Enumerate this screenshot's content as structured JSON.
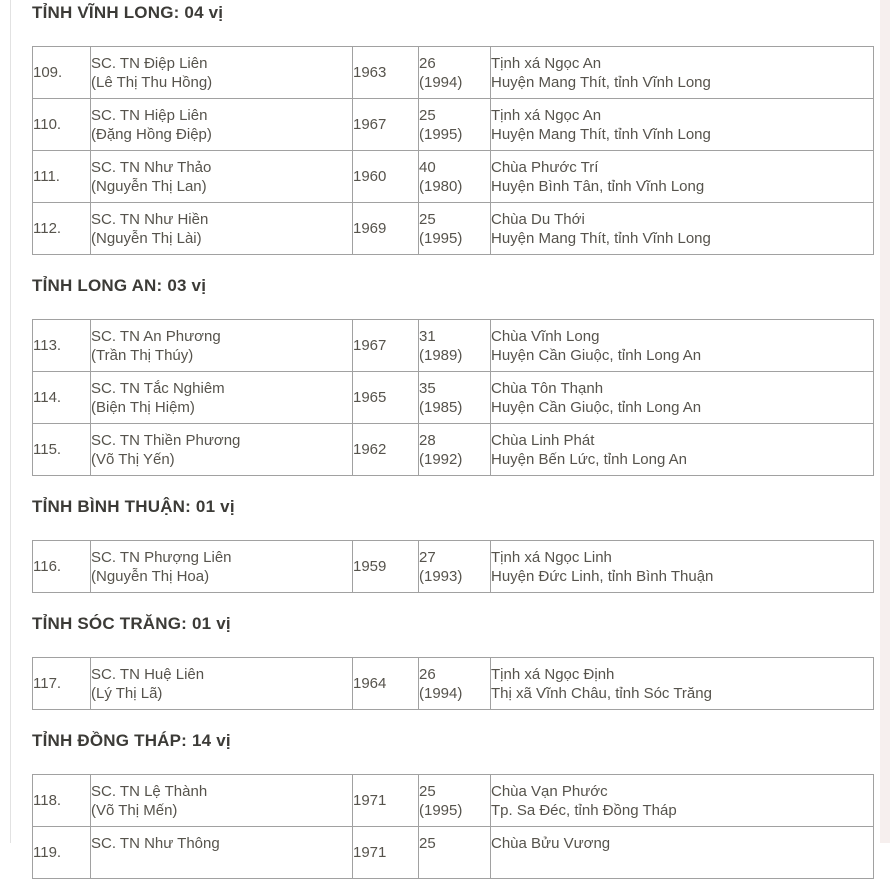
{
  "page": {
    "kind": "province-roster-list",
    "text_color": "#56534c",
    "title_color": "#3c3b37",
    "border_color": "#a1a1a1",
    "scrollbar_color": "#f6efee"
  },
  "sections": [
    {
      "title": "TỈNH VĨNH LONG: 04 vị",
      "rows": [
        {
          "no": "109.",
          "name": "SC. TN Điệp Liên",
          "birth_name": "(Lê Thị Thu Hồng)",
          "birth_year": "1963",
          "age": "26",
          "ord_year": "(1994)",
          "place_line1": "Tịnh xá Ngọc An",
          "place_line2": "Huyện Mang Thít, tỉnh Vĩnh Long"
        },
        {
          "no": "110.",
          "name": "SC. TN Hiệp Liên",
          "birth_name": "(Đặng Hồng Điệp)",
          "birth_year": "1967",
          "age": "25",
          "ord_year": "(1995)",
          "place_line1": "Tịnh xá Ngọc An",
          "place_line2": "Huyện Mang Thít, tỉnh Vĩnh Long"
        },
        {
          "no": "111.",
          "name": "SC. TN Như Thảo",
          "birth_name": "(Nguyễn Thị Lan)",
          "birth_year": "1960",
          "age": "40",
          "ord_year": "(1980)",
          "place_line1": "Chùa Phước Trí",
          "place_line2": "Huyện Bình Tân, tỉnh Vĩnh Long"
        },
        {
          "no": "112.",
          "name": "SC. TN Như Hiền",
          "birth_name": "(Nguyễn Thị Lài)",
          "birth_year": "1969",
          "age": "25",
          "ord_year": "(1995)",
          "place_line1": "Chùa Du Thới",
          "place_line2": "Huyện Mang Thít, tỉnh Vĩnh Long"
        }
      ]
    },
    {
      "title": "TỈNH LONG AN: 03 vị",
      "rows": [
        {
          "no": "113.",
          "name": "SC. TN An Phương",
          "birth_name": "(Trần Thị Thúy)",
          "birth_year": "1967",
          "age": "31",
          "ord_year": "(1989)",
          "place_line1": "Chùa Vĩnh Long",
          "place_line2": "Huyện Cần Giuộc, tỉnh Long An"
        },
        {
          "no": "114.",
          "name": "SC. TN Tắc Nghiêm",
          "birth_name": "(Biện Thị Hiệm)",
          "birth_year": "1965",
          "age": "35",
          "ord_year": "(1985)",
          "place_line1": "Chùa Tôn Thạnh",
          "place_line2": "Huyện Cần Giuộc, tỉnh Long An"
        },
        {
          "no": "115.",
          "name": "SC. TN Thiền Phương",
          "birth_name": "(Võ Thị Yến)",
          "birth_year": "1962",
          "age": "28",
          "ord_year": "(1992)",
          "place_line1": "Chùa Linh Phát",
          "place_line2": "Huyện Bến Lức, tỉnh Long An"
        }
      ]
    },
    {
      "title": "TỈNH BÌNH THUẬN: 01 vị",
      "rows": [
        {
          "no": "116.",
          "name": "SC. TN Phượng Liên",
          "birth_name": "(Nguyễn Thị Hoa)",
          "birth_year": "1959",
          "age": "27",
          "ord_year": "(1993)",
          "place_line1": "Tịnh xá Ngọc Linh",
          "place_line2": "Huyện Đức Linh, tỉnh Bình Thuận"
        }
      ]
    },
    {
      "title": "TỈNH SÓC TRĂNG: 01 vị",
      "rows": [
        {
          "no": "117.",
          "name": "SC. TN Huệ Liên",
          "birth_name": "(Lý Thị Lã)",
          "birth_year": "1964",
          "age": "26",
          "ord_year": "(1994)",
          "place_line1": "Tịnh xá Ngọc Định",
          "place_line2": "Thị xã Vĩnh Châu, tỉnh Sóc Trăng"
        }
      ]
    },
    {
      "title": "TỈNH ĐỒNG THÁP: 14 vị",
      "rows": [
        {
          "no": "118.",
          "name": "SC. TN Lệ Thành",
          "birth_name": "(Võ Thị Mến)",
          "birth_year": "1971",
          "age": "25",
          "ord_year": "(1995)",
          "place_line1": "Chùa Vạn Phước",
          "place_line2": "Tp. Sa Đéc, tỉnh Đồng Tháp"
        },
        {
          "no": "119.",
          "name": "SC. TN Như Thông",
          "birth_name": "",
          "birth_year": "1971",
          "age": "25",
          "ord_year": "",
          "place_line1": "Chùa Bửu Vương",
          "place_line2": ""
        }
      ]
    }
  ]
}
